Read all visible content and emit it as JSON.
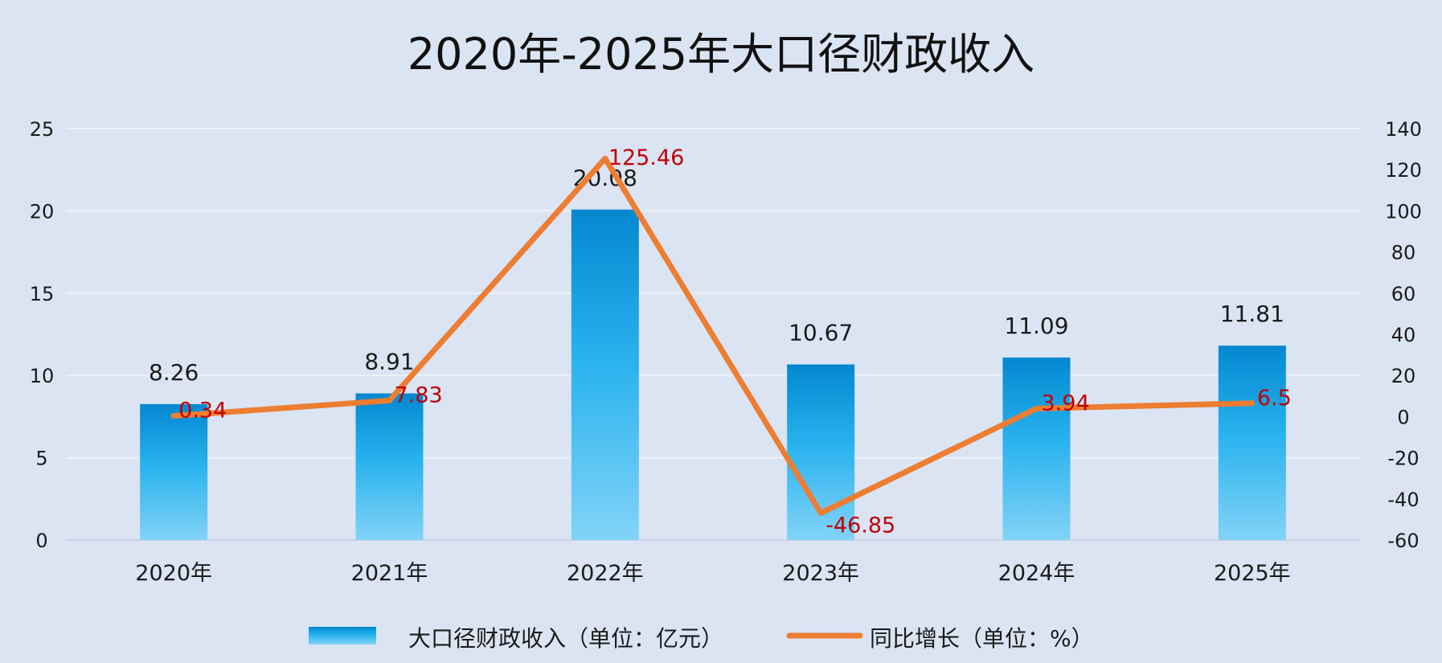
{
  "chart_data": {
    "type": "bar",
    "title": "2020年-2025年大口径财政收入",
    "categories": [
      "2020年",
      "2021年",
      "2022年",
      "2023年",
      "2024年",
      "2025年"
    ],
    "series": [
      {
        "name": "大口径财政收入（单位：亿元）",
        "type": "bar",
        "axis": "left",
        "values": [
          8.26,
          8.91,
          20.08,
          10.67,
          11.09,
          11.81
        ],
        "labels": [
          "8.26",
          "8.91",
          "20.08",
          "10.67",
          "11.09",
          "11.81"
        ]
      },
      {
        "name": "同比增长（单位：%）",
        "type": "line",
        "axis": "right",
        "values": [
          0.34,
          7.83,
          125.46,
          -46.85,
          3.94,
          6.5
        ],
        "labels": [
          "0.34",
          "7.83",
          "125.46",
          "-46.85",
          "3.94",
          "6.5"
        ]
      }
    ],
    "y_left": {
      "min": 0,
      "max": 25,
      "ticks": [
        "0",
        "5",
        "10",
        "15",
        "20",
        "25"
      ]
    },
    "y_right": {
      "min": -60,
      "max": 140,
      "ticks": [
        "-60",
        "-40",
        "-20",
        "0",
        "20",
        "40",
        "60",
        "80",
        "100",
        "120",
        "140"
      ]
    },
    "grid": true,
    "legend": "bottom",
    "colors": {
      "background": "#dbe4f3",
      "bar_top": "#0487cf",
      "bar_mid": "#27b2ee",
      "bar_bottom": "#82d3f7",
      "line": "#ed7d31",
      "line_label": "#c00000",
      "grid": "#eef2f8",
      "text": "#1a1a1a"
    }
  }
}
